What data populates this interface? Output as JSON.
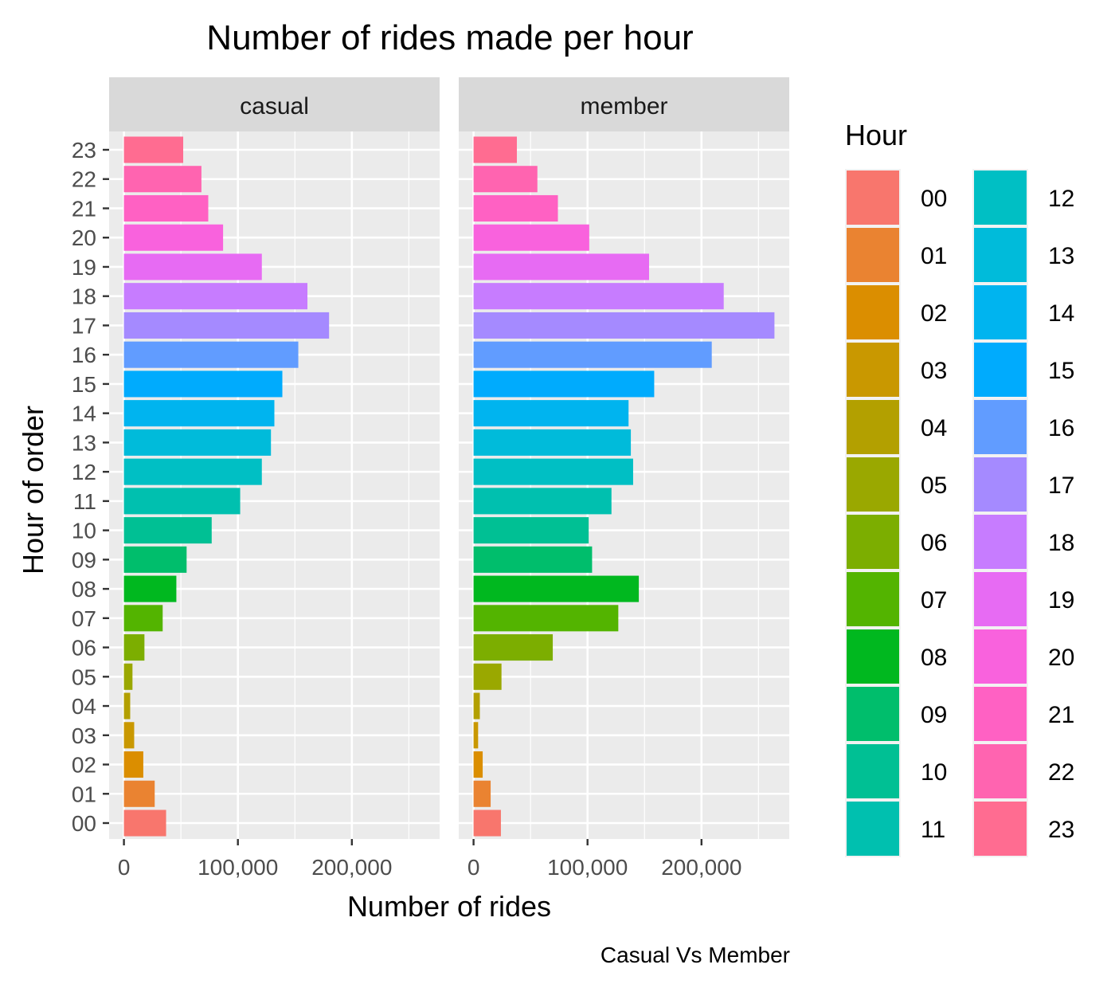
{
  "chart_data": {
    "type": "bar",
    "orientation": "horizontal",
    "facet": "faceted by rider type",
    "title": "Number of rides made per hour",
    "xlabel": "Number of rides",
    "ylabel": "Hour of order",
    "caption": "Casual Vs Member",
    "categories": [
      "00",
      "01",
      "02",
      "03",
      "04",
      "05",
      "06",
      "07",
      "08",
      "09",
      "10",
      "11",
      "12",
      "13",
      "14",
      "15",
      "16",
      "17",
      "18",
      "19",
      "20",
      "21",
      "22",
      "23"
    ],
    "panels": [
      {
        "name": "casual",
        "values": [
          37000,
          27000,
          17000,
          9000,
          5500,
          7500,
          18000,
          34000,
          46000,
          55000,
          77000,
          102000,
          121000,
          129000,
          132000,
          139000,
          153000,
          180000,
          161000,
          121000,
          87000,
          74000,
          68000,
          52000
        ]
      },
      {
        "name": "member",
        "values": [
          24000,
          15000,
          8000,
          4000,
          5500,
          24500,
          69500,
          127000,
          145000,
          104000,
          101000,
          121000,
          140000,
          138000,
          136000,
          158500,
          209000,
          264000,
          219500,
          154000,
          101500,
          74000,
          56000,
          38000
        ]
      }
    ],
    "xlim": [
      -13000,
      277000
    ],
    "xticks": [
      0,
      100000,
      200000
    ],
    "xtick_labels": [
      "0",
      "100,000",
      "200,000"
    ],
    "grid": true,
    "legend": {
      "title": "Hour",
      "position": "right",
      "columns": 2,
      "entries": [
        "00",
        "01",
        "02",
        "03",
        "04",
        "05",
        "06",
        "07",
        "08",
        "09",
        "10",
        "11",
        "12",
        "13",
        "14",
        "15",
        "16",
        "17",
        "18",
        "19",
        "20",
        "21",
        "22",
        "23"
      ]
    },
    "colors": [
      "#F8766D",
      "#EA8331",
      "#DB8E00",
      "#C99800",
      "#B3A000",
      "#9AA800",
      "#7CAE00",
      "#53B400",
      "#00B81F",
      "#00BE6C",
      "#00C094",
      "#00C0AF",
      "#00BFC4",
      "#00BBDA",
      "#00B4EF",
      "#00ABFD",
      "#619CFF",
      "#A58AFF",
      "#C77CFF",
      "#E76BF3",
      "#F962DD",
      "#FF61C3",
      "#FF64B0",
      "#FF6C91"
    ],
    "panel_background": "#EBEBEB",
    "strip_background": "#D9D9D9"
  }
}
